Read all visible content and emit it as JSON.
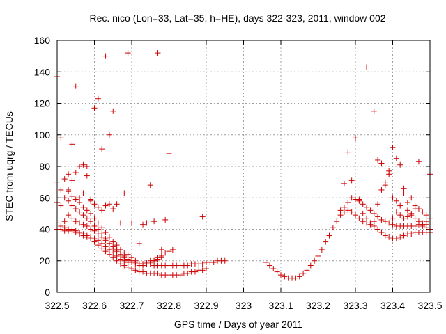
{
  "chart_data": {
    "type": "scatter",
    "title": "Rec. nico (Lon=33, Lat=35, h=HE), days 322-323, 2011, window 002",
    "xlabel": "GPS time / Days of year 2011",
    "ylabel": "STEC from uqrg / TECUs",
    "xlim": [
      322.5,
      323.5
    ],
    "ylim": [
      0,
      160
    ],
    "x_ticks": [
      "322.5",
      "322.6",
      "322.7",
      "322.8",
      "322.9",
      "323",
      "323.1",
      "323.2",
      "323.3",
      "323.4",
      "323.5"
    ],
    "y_ticks": [
      "0",
      "20",
      "40",
      "60",
      "80",
      "100",
      "120",
      "140",
      "160"
    ],
    "grid": true,
    "marker": "plus",
    "marker_color": "#cc0000",
    "series": [
      {
        "x": [
          322.5,
          322.51,
          322.52,
          322.53,
          322.54,
          322.55,
          322.56,
          322.57,
          322.58,
          322.59,
          322.6,
          322.61,
          322.62,
          322.63,
          322.64,
          322.65,
          322.66,
          322.67,
          322.68,
          322.69,
          322.7,
          322.71,
          322.72,
          322.73,
          322.74,
          322.75,
          322.76,
          322.77,
          322.78,
          322.79,
          322.8,
          322.81,
          322.82,
          322.83,
          322.84,
          322.85,
          322.86,
          322.87,
          322.88,
          322.89,
          322.9,
          322.91,
          322.92,
          322.93,
          322.94,
          322.95
        ],
        "y": [
          44,
          42,
          41,
          40,
          40,
          39,
          38,
          37,
          36,
          35,
          34,
          33,
          31,
          29,
          27,
          25,
          23,
          21,
          20,
          19,
          19,
          19,
          18,
          18,
          18,
          18,
          17,
          17,
          17,
          17,
          17,
          17,
          17,
          17,
          17,
          17,
          18,
          18,
          18,
          18,
          19,
          19,
          19,
          20,
          20,
          20
        ]
      },
      {
        "x": [
          322.5,
          322.51,
          322.52,
          322.53,
          322.54,
          322.55,
          322.56,
          322.57,
          322.58,
          322.59,
          322.6,
          322.61,
          322.62,
          322.63,
          322.64,
          322.65,
          322.66,
          322.67,
          322.68,
          322.69,
          322.7,
          322.71,
          322.72,
          322.73,
          322.74,
          322.75,
          322.76,
          322.77,
          322.78,
          322.79,
          322.8,
          322.81,
          322.82,
          322.83,
          322.84,
          322.85,
          322.86,
          322.87,
          322.88,
          322.89,
          322.9
        ],
        "y": [
          40,
          40,
          39,
          39,
          39,
          38,
          37,
          36,
          35,
          34,
          32,
          30,
          28,
          26,
          24,
          22,
          20,
          18,
          17,
          16,
          15,
          14,
          13,
          13,
          12,
          12,
          12,
          12,
          11,
          11,
          11,
          11,
          11,
          11,
          12,
          12,
          13,
          13,
          14,
          14,
          15
        ]
      },
      {
        "x": [
          322.53,
          322.54,
          322.55,
          322.56,
          322.57,
          322.58,
          322.59,
          322.6,
          322.61,
          322.62,
          322.63,
          322.64,
          322.65,
          322.66,
          322.67,
          322.68,
          322.69,
          322.7,
          322.71,
          322.72,
          322.73,
          322.74,
          322.75,
          322.76,
          322.77,
          322.78,
          322.79,
          322.8,
          322.81
        ],
        "y": [
          58,
          55,
          53,
          51,
          49,
          47,
          45,
          42,
          40,
          37,
          34,
          31,
          28,
          26,
          24,
          22,
          20,
          19,
          18,
          17,
          17,
          18,
          19,
          20,
          22,
          23,
          25,
          26,
          27
        ]
      },
      {
        "x": [
          322.5,
          322.51,
          322.52,
          322.53,
          322.54,
          322.55,
          322.56,
          322.57,
          322.58,
          322.59,
          322.6,
          322.61,
          322.62,
          322.63,
          322.64,
          322.65,
          322.66,
          322.67,
          322.68,
          322.69,
          322.7
        ],
        "y": [
          57,
          55,
          60,
          64,
          61,
          59,
          57,
          54,
          52,
          50,
          47,
          44,
          41,
          38,
          35,
          32,
          30,
          27,
          25,
          24,
          22
        ]
      },
      {
        "x": [
          322.5,
          322.51,
          322.52,
          322.53,
          322.54,
          322.55,
          322.56,
          322.57,
          322.58,
          322.59,
          322.6,
          322.61,
          322.62,
          322.63,
          322.64,
          322.65
        ],
        "y": [
          70,
          65,
          72,
          75,
          71,
          76,
          80,
          81,
          74,
          58,
          56,
          54,
          52,
          55,
          56,
          53
        ]
      },
      {
        "x": [
          322.5,
          322.51,
          322.53,
          322.54,
          322.55,
          322.56,
          322.57,
          322.58,
          322.59,
          322.6,
          322.61,
          322.62,
          322.63,
          322.64,
          322.65,
          322.66,
          322.67,
          322.68,
          322.69,
          322.7,
          322.71,
          322.72,
          322.73,
          322.74,
          322.75,
          322.76,
          322.77,
          322.78,
          322.79,
          322.8,
          322.89
        ],
        "y": [
          137,
          98,
          65,
          94,
          131,
          60,
          63,
          80,
          59,
          117,
          123,
          91,
          150,
          100,
          115,
          56,
          44,
          63,
          152,
          44,
          20,
          31,
          43,
          44,
          68,
          45,
          152,
          27,
          46,
          88,
          48
        ]
      },
      {
        "x": [
          322.52,
          322.53,
          322.54,
          322.55,
          322.56,
          322.57,
          322.58,
          322.59,
          322.6,
          322.61,
          322.62,
          322.63,
          322.64,
          322.65,
          322.66,
          322.67,
          322.68,
          322.69,
          322.7,
          322.71,
          322.72,
          322.73,
          322.74,
          322.75,
          322.76,
          322.77,
          322.78
        ],
        "y": [
          45,
          49,
          47,
          45,
          44,
          43,
          42,
          40,
          39,
          37,
          35,
          33,
          31,
          29,
          27,
          25,
          23,
          21,
          20,
          19,
          18,
          18,
          19,
          20,
          20,
          21,
          22
        ]
      },
      {
        "x": [
          323.06,
          323.07,
          323.08,
          323.09,
          323.1,
          323.11,
          323.12,
          323.13,
          323.14,
          323.15,
          323.16,
          323.17,
          323.18
        ],
        "y": [
          19,
          17,
          15,
          13,
          11,
          10,
          9,
          9,
          9,
          10,
          12,
          14,
          17
        ]
      },
      {
        "x": [
          323.19,
          323.2,
          323.21,
          323.22,
          323.23,
          323.24,
          323.25,
          323.26,
          323.27,
          323.28,
          323.29,
          323.3,
          323.31,
          323.32,
          323.33,
          323.34,
          323.35,
          323.36,
          323.37,
          323.38,
          323.39,
          323.4,
          323.41,
          323.42,
          323.43,
          323.44,
          323.45,
          323.46,
          323.47,
          323.48,
          323.49,
          323.5
        ],
        "y": [
          20,
          23,
          27,
          32,
          36,
          41,
          45,
          49,
          51,
          52,
          51,
          49,
          47,
          45,
          44,
          43,
          42,
          40,
          38,
          36,
          35,
          34,
          34,
          35,
          36,
          37,
          37,
          38,
          38,
          38,
          38,
          38
        ]
      },
      {
        "x": [
          323.26,
          323.27,
          323.28,
          323.29,
          323.3,
          323.31,
          323.32,
          323.33,
          323.34,
          323.35,
          323.36,
          323.37,
          323.38,
          323.39,
          323.4,
          323.41,
          323.42,
          323.43,
          323.44,
          323.45,
          323.46,
          323.47,
          323.48,
          323.49,
          323.5
        ],
        "y": [
          52,
          54,
          57,
          60,
          59,
          58,
          56,
          54,
          52,
          50,
          48,
          46,
          45,
          44,
          43,
          42,
          42,
          42,
          42,
          42,
          42,
          43,
          43,
          43,
          44
        ]
      },
      {
        "x": [
          323.27,
          323.28,
          323.29,
          323.3,
          323.31,
          323.32,
          323.33,
          323.34,
          323.35,
          323.36,
          323.37,
          323.38,
          323.39,
          323.4,
          323.41,
          323.42,
          323.43,
          323.44,
          323.45,
          323.46,
          323.47,
          323.48,
          323.49,
          323.5
        ],
        "y": [
          69,
          89,
          71,
          98,
          59,
          50,
          47,
          44,
          45,
          56,
          65,
          68,
          75,
          92,
          85,
          81,
          66,
          57,
          60,
          53,
          53,
          51,
          49,
          47
        ]
      },
      {
        "x": [
          323.33,
          323.35,
          323.36,
          323.37,
          323.38,
          323.39,
          323.4,
          323.41,
          323.42,
          323.43,
          323.44,
          323.45,
          323.46,
          323.47,
          323.48,
          323.49,
          323.5
        ],
        "y": [
          143,
          115,
          84,
          82,
          70,
          77,
          60,
          58,
          55,
          63,
          52,
          49,
          55,
          83,
          42,
          45,
          75
        ]
      },
      {
        "x": [
          323.4,
          323.41,
          323.42,
          323.43,
          323.44,
          323.45,
          323.46,
          323.47,
          323.48,
          323.49,
          323.5
        ],
        "y": [
          47,
          51,
          49,
          47,
          48,
          50,
          47,
          45,
          44,
          41,
          40
        ]
      }
    ]
  }
}
